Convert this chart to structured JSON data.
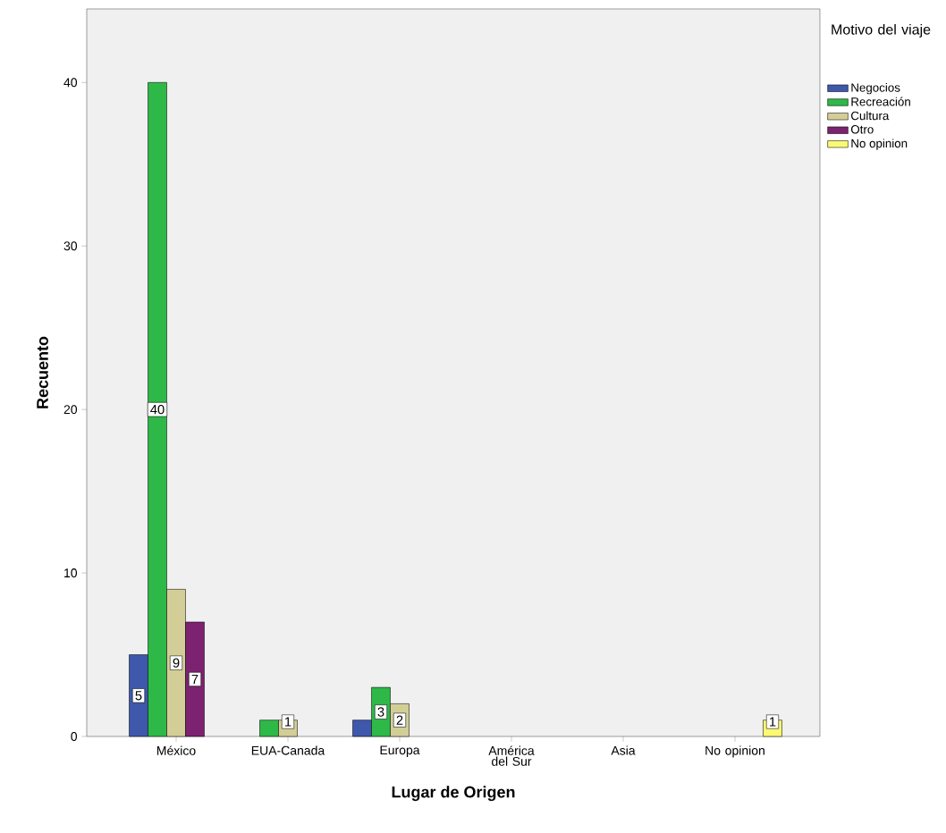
{
  "chart_data": {
    "type": "bar",
    "xlabel": "Lugar de Origen",
    "ylabel": "Recuento",
    "legend_title": "Motivo del viaje",
    "categories": [
      "México",
      "EUA-Canada",
      "Europa",
      "América del Sur",
      "Asia",
      "No opinion"
    ],
    "series": [
      {
        "name": "Negocios",
        "color": "#3e58ac",
        "values": [
          5,
          null,
          1,
          null,
          null,
          null
        ],
        "value_labels": [
          "5",
          null,
          null,
          null,
          null,
          null
        ]
      },
      {
        "name": "Recreación",
        "color": "#2eb848",
        "values": [
          40,
          1,
          3,
          null,
          null,
          null
        ],
        "value_labels": [
          "40",
          null,
          "3",
          null,
          null,
          null
        ]
      },
      {
        "name": "Cultura",
        "color": "#d3ce97",
        "values": [
          9,
          1,
          2,
          null,
          null,
          null
        ],
        "value_labels": [
          "9",
          "1",
          "2",
          null,
          null,
          null
        ]
      },
      {
        "name": "Otro",
        "color": "#7c2270",
        "values": [
          7,
          null,
          null,
          null,
          null,
          null
        ],
        "value_labels": [
          "7",
          null,
          null,
          null,
          null,
          null
        ]
      },
      {
        "name": "No opinion",
        "color": "#fbf873",
        "values": [
          null,
          null,
          null,
          null,
          null,
          1
        ],
        "value_labels": [
          null,
          null,
          null,
          null,
          null,
          "1"
        ]
      }
    ],
    "ylim": [
      0,
      44.5
    ],
    "yticks": [
      0,
      10,
      20,
      30,
      40
    ],
    "grid": false,
    "legend": "right"
  }
}
